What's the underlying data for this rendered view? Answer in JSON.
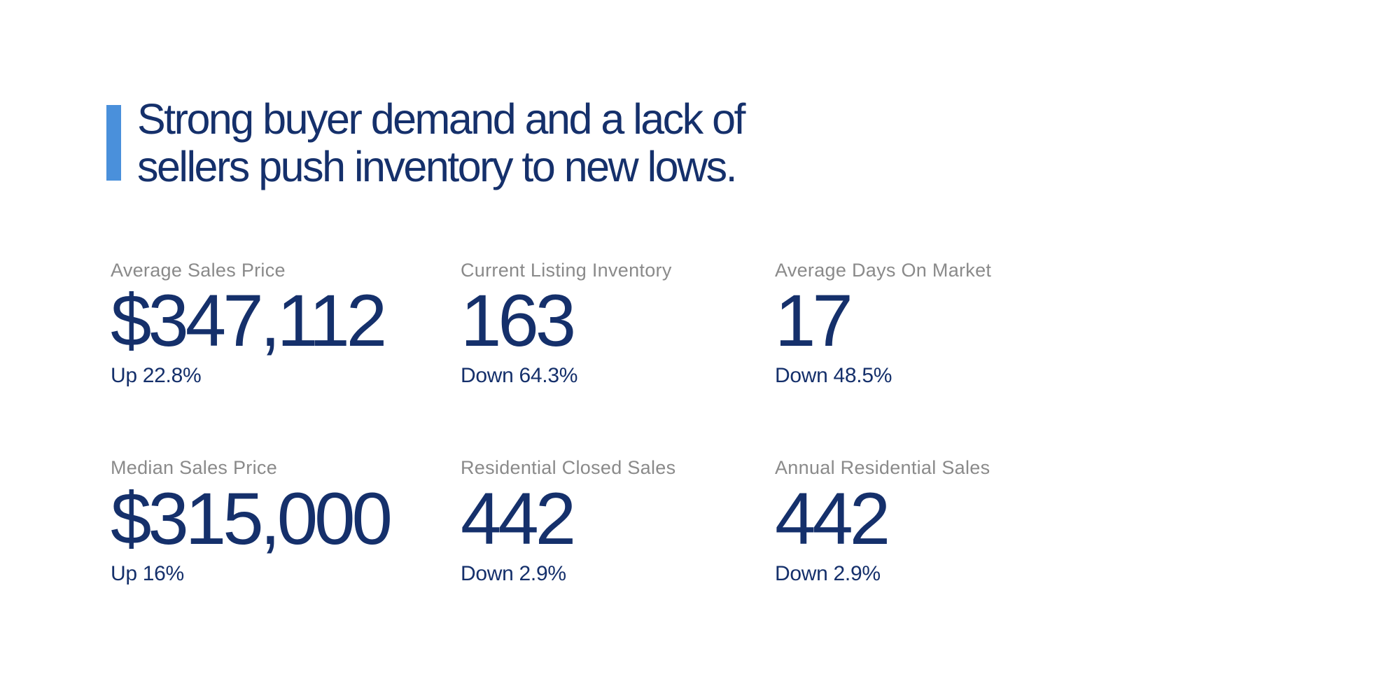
{
  "slide": {
    "headline": {
      "line1": "Strong buyer demand and a lack of",
      "line2": "sellers push inventory to new lows."
    },
    "stats": [
      {
        "label": "Average Sales Price",
        "value": "$347,112",
        "change": "Up 22.8%"
      },
      {
        "label": "Current Listing Inventory",
        "value": "163",
        "change": "Down 64.3%"
      },
      {
        "label": "Average Days On Market",
        "value": "17",
        "change": "Down 48.5%"
      },
      {
        "label": "Median Sales Price",
        "value": "$315,000",
        "change": "Up 16%"
      },
      {
        "label": "Residential Closed Sales",
        "value": "442",
        "change": "Down 2.9%"
      },
      {
        "label": "Annual Residential Sales",
        "value": "442",
        "change": "Down 2.9%"
      }
    ],
    "colors": {
      "background": "#ffffff",
      "accent_blue": "#4a90db",
      "navy_text": "#15306b",
      "label_gray": "#8a8a8a"
    }
  }
}
